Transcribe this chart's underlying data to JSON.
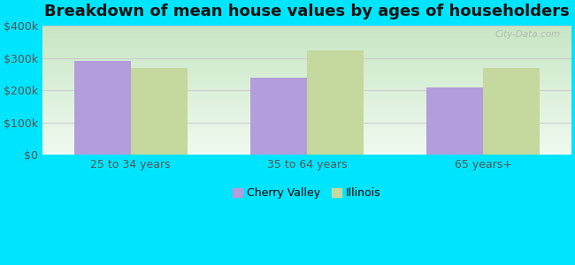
{
  "title": "Breakdown of mean house values by ages of householders",
  "categories": [
    "25 to 34 years",
    "35 to 64 years",
    "65 years+"
  ],
  "cherry_valley": [
    290000,
    240000,
    210000
  ],
  "illinois": [
    270000,
    325000,
    270000
  ],
  "cherry_valley_color": "#b39ddb",
  "illinois_color": "#c5d89d",
  "background_color": "#00e5ff",
  "plot_bg_top": "#c8e6c4",
  "plot_bg_bottom": "#f0faf0",
  "ylim": [
    0,
    400000
  ],
  "yticks": [
    0,
    100000,
    200000,
    300000,
    400000
  ],
  "ytick_labels": [
    "$0",
    "$100k",
    "$200k",
    "$300k",
    "$400k"
  ],
  "bar_width": 0.32,
  "legend_labels": [
    "Cherry Valley",
    "Illinois"
  ],
  "title_fontsize": 13,
  "tick_fontsize": 9,
  "legend_fontsize": 9,
  "watermark_text": "City-Data.com",
  "grid_color": "#cccccc",
  "tick_color": "#555555"
}
